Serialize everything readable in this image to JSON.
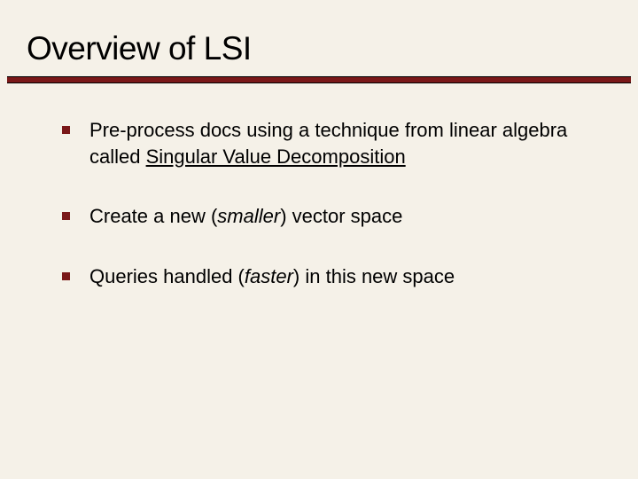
{
  "slide": {
    "background_color": "#f5f1e8",
    "text_color": "#000000",
    "accent_color": "#7a1818",
    "title": "Overview of LSI",
    "title_fontsize": 37,
    "body_fontsize": 22,
    "divider": {
      "height": 6,
      "background": "#7a1818",
      "border_color": "#000000"
    },
    "bullets": [
      {
        "segments": [
          {
            "text": "Pre-process docs using a technique from linear algebra called ",
            "style": "normal"
          },
          {
            "text": "Singular Value Decomposition",
            "style": "underline"
          }
        ]
      },
      {
        "segments": [
          {
            "text": "Create a new (",
            "style": "normal"
          },
          {
            "text": "smaller",
            "style": "italic"
          },
          {
            "text": ") vector space",
            "style": "normal"
          }
        ]
      },
      {
        "segments": [
          {
            "text": "Queries handled (",
            "style": "normal"
          },
          {
            "text": "faster",
            "style": "italic"
          },
          {
            "text": ") in this new space",
            "style": "normal"
          }
        ]
      }
    ]
  }
}
